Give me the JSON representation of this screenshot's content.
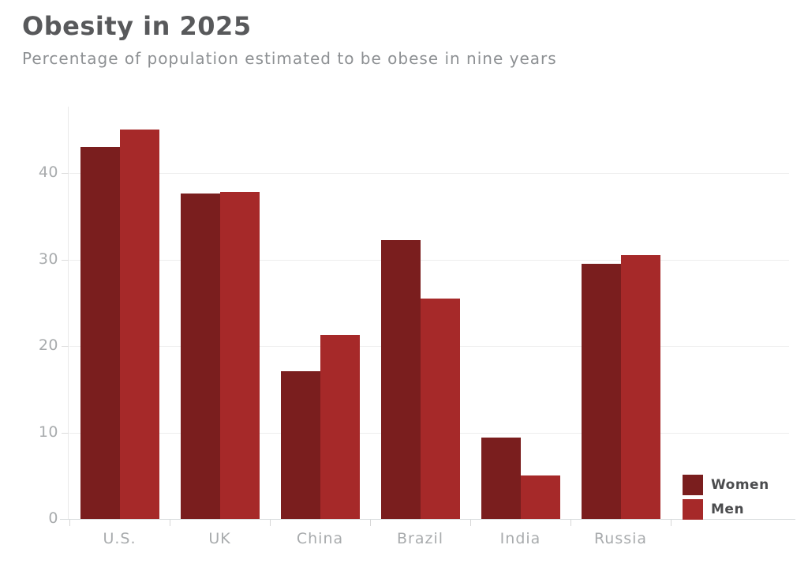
{
  "chart_data": {
    "type": "bar",
    "title": "Obesity in 2025",
    "subtitle": "Percentage of population estimated to be obese in nine years",
    "categories": [
      "U.S.",
      "UK",
      "China",
      "Brazil",
      "India",
      "Russia"
    ],
    "series": [
      {
        "name": "Women",
        "color": "#7a1e1e",
        "values": [
          43.0,
          37.6,
          17.1,
          32.2,
          9.4,
          29.5
        ]
      },
      {
        "name": "Men",
        "color": "#a62929",
        "values": [
          45.0,
          37.8,
          21.3,
          25.5,
          5.0,
          30.5
        ]
      }
    ],
    "xlabel": "",
    "ylabel": "",
    "y_axis": {
      "ticks": [
        0,
        10,
        20,
        30,
        40
      ],
      "ylim": [
        0,
        48
      ]
    },
    "grid": true,
    "legend_position": "bottom-right"
  },
  "colors": {
    "title_text": "#58595b",
    "subtitle_text": "#8d9093",
    "axis_text": "#a8abad",
    "legend_text": "#4b4c4e",
    "gridline": "#ededed",
    "axis_line": "#d7dadc",
    "background": "#ffffff"
  }
}
